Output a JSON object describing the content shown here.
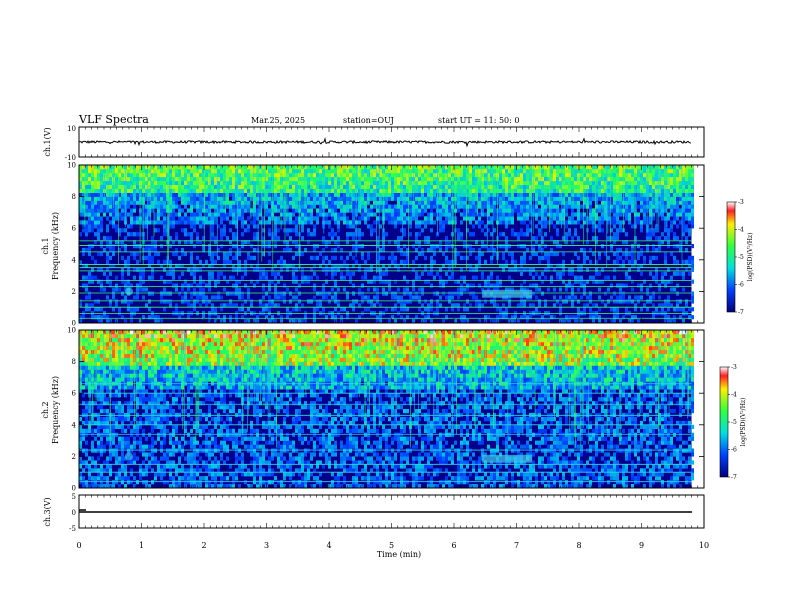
{
  "header": {
    "title": "VLF Spectra",
    "date": "Mar.25, 2025",
    "station": "station=OUJ",
    "start": "start UT =  11: 50: 0"
  },
  "panels": {
    "ch1_wave": {
      "ylabel": "ch.1(V)",
      "ticks": [
        "10",
        "-10"
      ]
    },
    "ch1_spec": {
      "ylabel_top": "ch.1",
      "ylabel": "Frequency (kHz)",
      "ticks": [
        "0",
        "2",
        "4",
        "6",
        "8",
        "10"
      ]
    },
    "ch2_spec": {
      "ylabel_top": "ch.2",
      "ylabel": "Frequency (kHz)",
      "ticks": [
        "0",
        "2",
        "4",
        "6",
        "8",
        "10"
      ]
    },
    "ch3_wave": {
      "ylabel": "ch.3(V)",
      "ticks": [
        "5",
        "0",
        "-5"
      ]
    }
  },
  "colorbar": {
    "label": "log(PSD)(V²/Hz)",
    "ticks": [
      "-3",
      "-4",
      "-5",
      "-6",
      "-7"
    ]
  },
  "xaxis": {
    "label": "Time (min)",
    "ticks": [
      "0",
      "1",
      "2",
      "3",
      "4",
      "5",
      "6",
      "7",
      "8",
      "9",
      "10"
    ]
  },
  "colors": {
    "low": "#000080",
    "mid_low": "#0050ff",
    "mid": "#00e0e0",
    "mid_high": "#40ff40",
    "high": "#ffff00",
    "max": "#ff2020"
  },
  "chart_data": [
    {
      "type": "line",
      "name": "ch.1 waveform",
      "ylim": [
        -10,
        10
      ],
      "xlim": [
        0,
        10
      ],
      "mean": 0,
      "span": [
        0,
        9.8
      ]
    },
    {
      "type": "heatmap",
      "name": "ch.1 spectrogram",
      "ylim": [
        0,
        10
      ],
      "xlim": [
        0,
        10
      ],
      "clim": [
        -7,
        -3
      ],
      "lines_khz": [
        0.3,
        0.6,
        1.0,
        1.4,
        1.9,
        2.3,
        2.7,
        3.3,
        3.5,
        3.7,
        4.5,
        4.9,
        5.2
      ],
      "bright_band_khz": [
        8.0,
        10.0
      ]
    },
    {
      "type": "heatmap",
      "name": "ch.2 spectrogram",
      "ylim": [
        0,
        10
      ],
      "xlim": [
        0,
        10
      ],
      "clim": [
        -7,
        -3
      ],
      "lines_khz": [
        0.4,
        1.0,
        1.5,
        2.4,
        3.4,
        4.0,
        4.6,
        5.3,
        6.0,
        6.6
      ],
      "bright_band_khz": [
        7.5,
        10.0
      ]
    },
    {
      "type": "line",
      "name": "ch.3 waveform",
      "ylim": [
        -5,
        5
      ],
      "xlim": [
        0,
        10
      ],
      "mean": 0,
      "span": [
        0,
        9.8
      ]
    }
  ]
}
